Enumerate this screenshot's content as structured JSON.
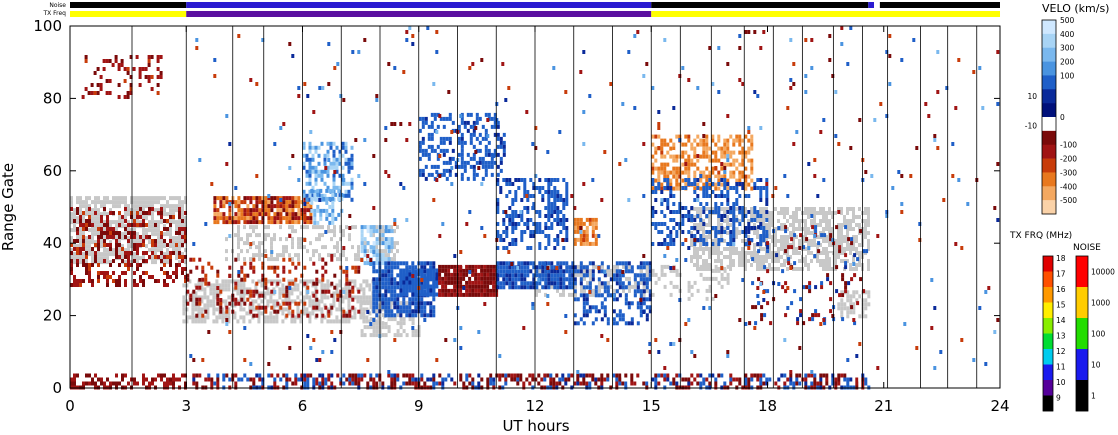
{
  "chart_data": {
    "type": "heatmap",
    "x_axis": {
      "label": "UT hours",
      "range": [
        0,
        24
      ],
      "ticks": [
        0,
        3,
        6,
        9,
        12,
        15,
        18,
        21,
        24
      ]
    },
    "y_axis": {
      "label": "Range Gate",
      "range": [
        0,
        100
      ],
      "ticks": [
        0,
        20,
        40,
        60,
        80,
        100
      ]
    },
    "status_bars": {
      "noise_label": "Noise",
      "txfreq_label": "TX Freq",
      "txfreq_segments": [
        {
          "from": 0,
          "to": 3,
          "color": "#ffff00"
        },
        {
          "from": 3,
          "to": 15,
          "color": "#5a0fa0"
        },
        {
          "from": 15,
          "to": 24,
          "color": "#ffff00"
        }
      ],
      "noise_segments": [
        {
          "from": 0,
          "to": 3,
          "color": "#000000"
        },
        {
          "from": 3,
          "to": 15,
          "color": "#2a1ad0"
        },
        {
          "from": 15,
          "to": 20.6,
          "color": "#000000"
        },
        {
          "from": 20.6,
          "to": 20.75,
          "color": "#2a1ad0"
        },
        {
          "from": 20.75,
          "to": 20.9,
          "color": "#ffffff"
        },
        {
          "from": 20.9,
          "to": 24,
          "color": "#000000"
        }
      ]
    },
    "velocity_colorbar": {
      "title": "VELO (km/s)",
      "tick_labels": [
        "500",
        "400",
        "300",
        "200",
        "100",
        "10",
        "0",
        "-10",
        "-100",
        "-200",
        "-300",
        "-400",
        "-500"
      ],
      "colors_top_to_bottom": [
        "#cfe8ff",
        "#a8d4f5",
        "#7ab8ee",
        "#4a94e0",
        "#1f5fc8",
        "#0a2a9a",
        "#00107a",
        "#ffffff",
        "#7a0a0a",
        "#a01414",
        "#c83c0a",
        "#e8781e",
        "#f4a860",
        "#fad2a8"
      ]
    },
    "txfreq_colorbar": {
      "title": "TX FRQ (MHz)",
      "tick_labels": [
        "18",
        "17",
        "16",
        "15",
        "14",
        "13",
        "12",
        "11",
        "10",
        "9"
      ],
      "colors_top_to_bottom": [
        "#e00000",
        "#ff5000",
        "#ff9900",
        "#ffee00",
        "#88ee00",
        "#00dd33",
        "#00ccee",
        "#1a1aee",
        "#55009a",
        "#000000"
      ]
    },
    "noise_colorbar": {
      "title": "NOISE",
      "tick_labels": [
        "10000",
        "1000",
        "100",
        "10",
        "1"
      ],
      "colors_top_to_bottom": [
        "#ff0000",
        "#ffcc00",
        "#22dd00",
        "#1a1aee",
        "#000000"
      ]
    },
    "vertical_line_hours": [
      1.6,
      3,
      4.2,
      5,
      6,
      7,
      8,
      9,
      10,
      11,
      12,
      13,
      14,
      15,
      15.75,
      16.55,
      17.4,
      18.15,
      18.9,
      19.7,
      20.45,
      21.1,
      21.95,
      22.65,
      23.4
    ],
    "data_regions": [
      {
        "kind": "ground_scatter",
        "t0": 0,
        "t1": 3,
        "g0": 35,
        "g1": 53,
        "density": 0.75
      },
      {
        "kind": "ground_scatter",
        "t0": 2.9,
        "t1": 8.3,
        "g0": 18,
        "g1": 30,
        "density": 0.6
      },
      {
        "kind": "ground_scatter",
        "t0": 4,
        "t1": 8.5,
        "g0": 35,
        "g1": 45,
        "density": 0.35
      },
      {
        "kind": "ground_scatter",
        "t0": 7.5,
        "t1": 9,
        "g0": 14,
        "g1": 24,
        "density": 0.55
      },
      {
        "kind": "ground_scatter",
        "t0": 12,
        "t1": 15,
        "g0": 26,
        "g1": 34,
        "density": 0.5
      },
      {
        "kind": "ground_scatter",
        "t0": 16,
        "t1": 20.6,
        "g0": 33,
        "g1": 50,
        "density": 0.65
      },
      {
        "kind": "ground_scatter",
        "t0": 19.8,
        "t1": 20.6,
        "g0": 20,
        "g1": 27,
        "density": 0.6
      },
      {
        "kind": "ground_scatter",
        "t0": 14.7,
        "t1": 17,
        "g0": 25,
        "g1": 34,
        "density": 0.25
      },
      {
        "kind": "velocity",
        "t0": 0,
        "t1": 3,
        "g0": 28,
        "g1": 50,
        "density": 0.35,
        "v0": -250,
        "v1": -20
      },
      {
        "kind": "velocity",
        "t0": 0.3,
        "t1": 2.4,
        "g0": 80,
        "g1": 92,
        "density": 0.22,
        "v0": -250,
        "v1": -20
      },
      {
        "kind": "velocity",
        "t0": 3.7,
        "t1": 6.2,
        "g0": 46,
        "g1": 53,
        "density": 0.8,
        "v0": -450,
        "v1": -80
      },
      {
        "kind": "velocity",
        "t0": 6,
        "t1": 7.3,
        "g0": 52,
        "g1": 68,
        "density": 0.55,
        "v0": 50,
        "v1": 450
      },
      {
        "kind": "velocity",
        "t0": 6.2,
        "t1": 7,
        "g0": 45,
        "g1": 55,
        "density": 0.5,
        "v0": 150,
        "v1": 450
      },
      {
        "kind": "velocity",
        "t0": 3,
        "t1": 7.5,
        "g0": 20,
        "g1": 36,
        "density": 0.22,
        "v0": -300,
        "v1": -30
      },
      {
        "kind": "velocity",
        "t0": 7.5,
        "t1": 8.3,
        "g0": 34,
        "g1": 45,
        "density": 0.6,
        "v0": 200,
        "v1": 500
      },
      {
        "kind": "velocity",
        "t0": 7.8,
        "t1": 9.4,
        "g0": 20,
        "g1": 35,
        "density": 0.8,
        "v0": 20,
        "v1": 150
      },
      {
        "kind": "velocity",
        "t0": 8.5,
        "t1": 9.5,
        "g0": 26,
        "g1": 33,
        "density": 0.85,
        "v0": 30,
        "v1": 150
      },
      {
        "kind": "velocity",
        "t0": 9.5,
        "t1": 11,
        "g0": 26,
        "g1": 34,
        "density": 0.95,
        "v0": -150,
        "v1": -40
      },
      {
        "kind": "velocity",
        "t0": 11,
        "t1": 13,
        "g0": 28,
        "g1": 35,
        "density": 0.9,
        "v0": 20,
        "v1": 130
      },
      {
        "kind": "velocity",
        "t0": 9,
        "t1": 11.2,
        "g0": 58,
        "g1": 76,
        "density": 0.45,
        "v0": 30,
        "v1": 150
      },
      {
        "kind": "velocity",
        "t0": 11,
        "t1": 12.8,
        "g0": 38,
        "g1": 58,
        "density": 0.45,
        "v0": 20,
        "v1": 150
      },
      {
        "kind": "velocity",
        "t0": 13,
        "t1": 15,
        "g0": 18,
        "g1": 35,
        "density": 0.45,
        "v0": 20,
        "v1": 150
      },
      {
        "kind": "velocity",
        "t0": 13,
        "t1": 13.6,
        "g0": 40,
        "g1": 47,
        "density": 0.85,
        "v0": -450,
        "v1": -300
      },
      {
        "kind": "velocity",
        "t0": 15,
        "t1": 17.6,
        "g0": 55,
        "g1": 70,
        "density": 0.55,
        "v0": -500,
        "v1": -300
      },
      {
        "kind": "velocity",
        "t0": 15,
        "t1": 18,
        "g0": 40,
        "g1": 58,
        "density": 0.4,
        "v0": 20,
        "v1": 150
      },
      {
        "kind": "velocity",
        "t0": 17.5,
        "t1": 20.6,
        "g0": 18,
        "g1": 45,
        "density": 0.12,
        "v0": -200,
        "v1": 150
      },
      {
        "kind": "velocity",
        "t0": 0,
        "t1": 3,
        "g0": 0,
        "g1": 4,
        "density": 0.45,
        "v0": -200,
        "v1": -40
      },
      {
        "kind": "velocity",
        "t0": 3,
        "t1": 20.6,
        "g0": 0,
        "g1": 4,
        "density": 0.55,
        "v0": -200,
        "v1": 150
      },
      {
        "kind": "velocity",
        "t0": 3,
        "t1": 24,
        "g0": 4,
        "g1": 100,
        "density": 0.02,
        "v0": -300,
        "v1": 300
      }
    ]
  }
}
